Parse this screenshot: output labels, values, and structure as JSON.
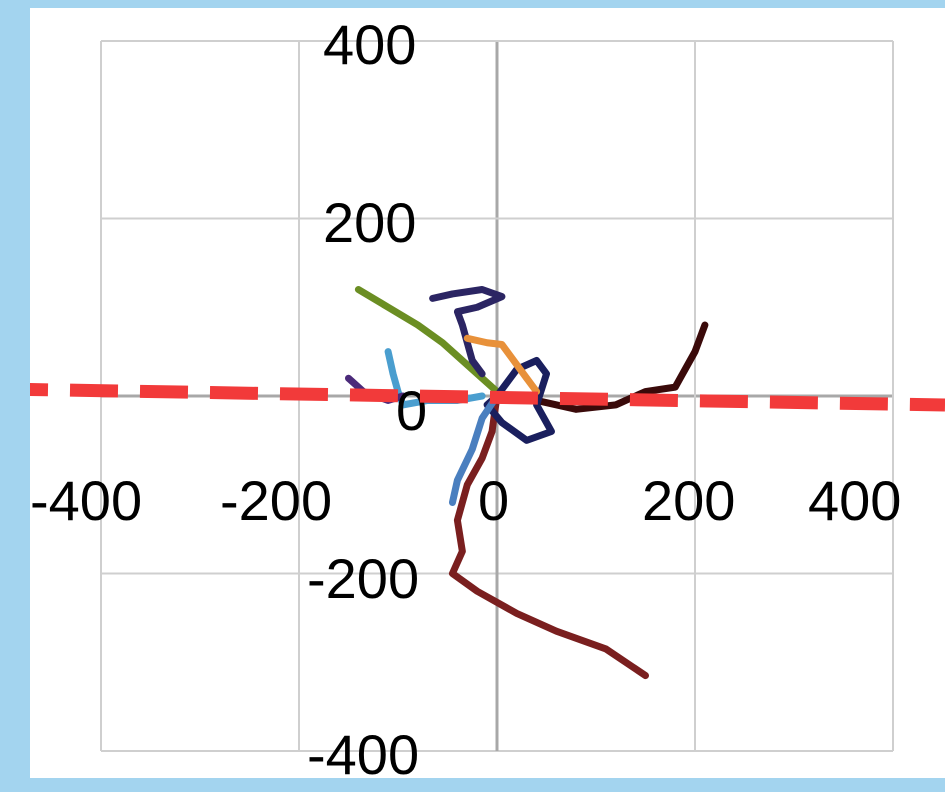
{
  "chart_data": {
    "type": "line",
    "xlim": [
      -400,
      400
    ],
    "ylim": [
      -400,
      400
    ],
    "x_ticks": [
      "-400",
      "-200",
      "0",
      "200",
      "400"
    ],
    "y_ticks": [
      "400",
      "200",
      "0",
      "-200",
      "-400"
    ],
    "grid": true,
    "legend": "none",
    "series": [
      {
        "color": "#7a1f1f",
        "points": [
          [
            0,
            0
          ],
          [
            -5,
            -40
          ],
          [
            -15,
            -70
          ],
          [
            -30,
            -100
          ],
          [
            -40,
            -140
          ],
          [
            -35,
            -175
          ],
          [
            -45,
            -200
          ],
          [
            -20,
            -220
          ],
          [
            20,
            -245
          ],
          [
            60,
            -265
          ],
          [
            110,
            -285
          ],
          [
            150,
            -315
          ]
        ]
      },
      {
        "color": "#3a0a0a",
        "points": [
          [
            0,
            0
          ],
          [
            40,
            -5
          ],
          [
            80,
            -15
          ],
          [
            120,
            -10
          ],
          [
            150,
            5
          ],
          [
            180,
            10
          ],
          [
            190,
            30
          ],
          [
            200,
            50
          ],
          [
            210,
            80
          ]
        ]
      },
      {
        "color": "#6b8e23",
        "points": [
          [
            -140,
            120
          ],
          [
            -110,
            100
          ],
          [
            -80,
            80
          ],
          [
            -55,
            60
          ],
          [
            -35,
            40
          ],
          [
            -15,
            20
          ],
          [
            0,
            5
          ]
        ]
      },
      {
        "color": "#2b2563",
        "points": [
          [
            -65,
            110
          ],
          [
            -45,
            115
          ],
          [
            -15,
            120
          ],
          [
            5,
            112
          ],
          [
            -20,
            100
          ],
          [
            -40,
            95
          ],
          [
            -35,
            80
          ],
          [
            -30,
            60
          ],
          [
            -25,
            40
          ],
          [
            -15,
            25
          ]
        ]
      },
      {
        "color": "#1a1f5e",
        "points": [
          [
            0,
            0
          ],
          [
            20,
            30
          ],
          [
            40,
            40
          ],
          [
            50,
            25
          ],
          [
            40,
            -10
          ],
          [
            55,
            -40
          ],
          [
            30,
            -50
          ],
          [
            5,
            -30
          ],
          [
            -10,
            -10
          ],
          [
            0,
            0
          ]
        ]
      },
      {
        "color": "#4a7fbf",
        "points": [
          [
            0,
            0
          ],
          [
            -15,
            -25
          ],
          [
            -25,
            -60
          ],
          [
            -40,
            -95
          ],
          [
            -45,
            -120
          ]
        ]
      },
      {
        "color": "#4a9ecf",
        "points": [
          [
            -110,
            50
          ],
          [
            -105,
            25
          ],
          [
            -100,
            5
          ],
          [
            -95,
            -10
          ],
          [
            -70,
            -5
          ],
          [
            -40,
            -5
          ],
          [
            -15,
            0
          ]
        ]
      },
      {
        "color": "#4b2a7a",
        "points": [
          [
            -150,
            20
          ],
          [
            -135,
            5
          ],
          [
            -110,
            -5
          ],
          [
            -95,
            0
          ]
        ]
      },
      {
        "color": "#e8913a",
        "points": [
          [
            -30,
            65
          ],
          [
            -10,
            60
          ],
          [
            5,
            58
          ],
          [
            30,
            20
          ],
          [
            40,
            5
          ]
        ]
      }
    ]
  },
  "overlay": {
    "line_color": "#f23a3a",
    "y_value": 0
  }
}
